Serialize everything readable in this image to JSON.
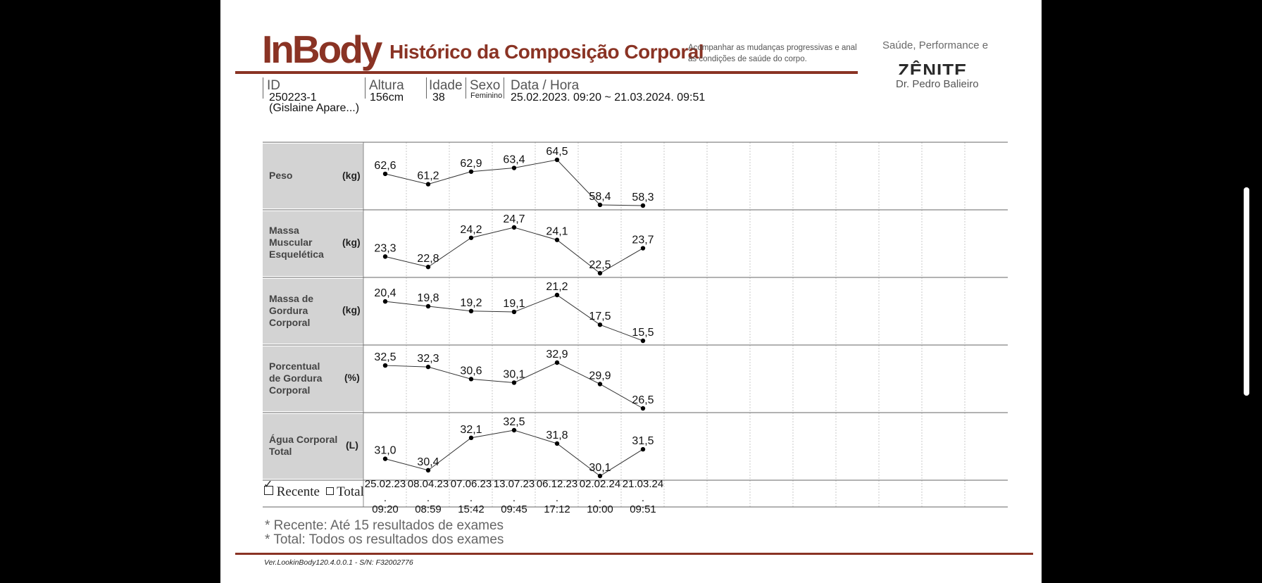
{
  "header": {
    "logo": "InBody",
    "title": "Histórico da Composição Corporal",
    "description_line1": "Acompanhar as mudanças progressivas e analisa",
    "description_line2": "as condições de saúde do corpo.",
    "brand_tagline": "Saúde, Performance e",
    "brand_name": "ZÊNITE",
    "brand_doctor": "Dr. Pedro Balieiro"
  },
  "info": {
    "id_label": "ID",
    "id_value": "250223-1",
    "name_value": "(Gislaine Apare...)",
    "height_label": "Altura",
    "height_value": "156cm",
    "age_label": "Idade",
    "age_value": "38",
    "sex_label": "Sexo",
    "sex_value": "Feminino",
    "datetime_label": "Data / Hora",
    "datetime_value": "25.02.2023. 09:20 ~ 21.03.2024. 09:51"
  },
  "rows": [
    {
      "label": "Peso",
      "unit": "(kg)"
    },
    {
      "label": "Massa Muscular Esquelética",
      "unit": "(kg)"
    },
    {
      "label": "Massa de Gordura Corporal",
      "unit": "(kg)"
    },
    {
      "label": "Porcentual de Gordura Corporal",
      "unit": "(%)"
    },
    {
      "label": "Água Corporal Total",
      "unit": "(L)"
    }
  ],
  "legend": {
    "recent_label": "Recente",
    "recent_checked": true,
    "total_label": "Total",
    "total_checked": false
  },
  "notes": {
    "recent": "* Recente:  Até 15 resultados de exames",
    "total": "* Total: Todos os resultados dos exames"
  },
  "footer": {
    "version": "Ver.LookinBody120.4.0.0.1 - S/N: F32002776"
  },
  "colors": {
    "brand": "#8a3324",
    "label_bg": "#d3d3d3"
  },
  "chart_data": [
    {
      "type": "line",
      "title": "Peso",
      "x": [
        "25.02.23 . 09:20",
        "08.04.23 . 08:59",
        "07.06.23 . 15:42",
        "13.07.23 . 09:45",
        "06.12.23 . 17:12",
        "02.02.24 . 10:00",
        "21.03.24 . 09:51"
      ],
      "series": [
        {
          "values": [
            62.6,
            61.2,
            62.9,
            63.4,
            64.5,
            58.4,
            58.3
          ],
          "labels": [
            "62,6",
            "61,2",
            "62,9",
            "63,4",
            "64,5",
            "58,4",
            "58,3"
          ]
        }
      ],
      "ylim": [
        58.3,
        64.5
      ],
      "grid": true
    },
    {
      "type": "line",
      "title": "Massa Muscular Esquelética",
      "x": [
        "25.02.23 . 09:20",
        "08.04.23 . 08:59",
        "07.06.23 . 15:42",
        "13.07.23 . 09:45",
        "06.12.23 . 17:12",
        "02.02.24 . 10:00",
        "21.03.24 . 09:51"
      ],
      "series": [
        {
          "values": [
            23.3,
            22.8,
            24.2,
            24.7,
            24.1,
            22.5,
            23.7
          ],
          "labels": [
            "23,3",
            "22,8",
            "24,2",
            "24,7",
            "24,1",
            "22,5",
            "23,7"
          ]
        }
      ],
      "ylim": [
        22.5,
        24.7
      ],
      "grid": true
    },
    {
      "type": "line",
      "title": "Massa de Gordura Corporal",
      "x": [
        "25.02.23 . 09:20",
        "08.04.23 . 08:59",
        "07.06.23 . 15:42",
        "13.07.23 . 09:45",
        "06.12.23 . 17:12",
        "02.02.24 . 10:00",
        "21.03.24 . 09:51"
      ],
      "series": [
        {
          "values": [
            20.4,
            19.8,
            19.2,
            19.1,
            21.2,
            17.5,
            15.5
          ],
          "labels": [
            "20,4",
            "19,8",
            "19,2",
            "19,1",
            "21,2",
            "17,5",
            "15,5"
          ]
        }
      ],
      "ylim": [
        15.5,
        21.2
      ],
      "grid": true
    },
    {
      "type": "line",
      "title": "Porcentual de Gordura Corporal",
      "x": [
        "25.02.23 . 09:20",
        "08.04.23 . 08:59",
        "07.06.23 . 15:42",
        "13.07.23 . 09:45",
        "06.12.23 . 17:12",
        "02.02.24 . 10:00",
        "21.03.24 . 09:51"
      ],
      "series": [
        {
          "values": [
            32.5,
            32.3,
            30.6,
            30.1,
            32.9,
            29.9,
            26.5
          ],
          "labels": [
            "32,5",
            "32,3",
            "30,6",
            "30,1",
            "32,9",
            "29,9",
            "26,5"
          ]
        }
      ],
      "ylim": [
        26.5,
        32.9
      ],
      "grid": true
    },
    {
      "type": "line",
      "title": "Água Corporal Total",
      "x": [
        "25.02.23 . 09:20",
        "08.04.23 . 08:59",
        "07.06.23 . 15:42",
        "13.07.23 . 09:45",
        "06.12.23 . 17:12",
        "02.02.24 . 10:00",
        "21.03.24 . 09:51"
      ],
      "series": [
        {
          "values": [
            31.0,
            30.4,
            32.1,
            32.5,
            31.8,
            30.1,
            31.5
          ],
          "labels": [
            "31,0",
            "30,4",
            "32,1",
            "32,5",
            "31,8",
            "30,1",
            "31,5"
          ]
        }
      ],
      "ylim": [
        30.1,
        32.5
      ],
      "grid": true
    }
  ]
}
